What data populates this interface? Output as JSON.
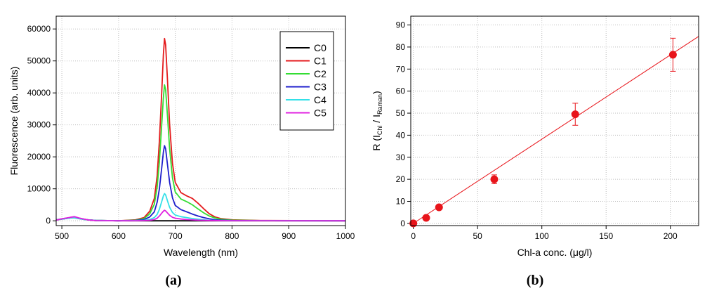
{
  "chart_data": [
    {
      "type": "line",
      "xlabel": "Wavelength (nm)",
      "ylabel": "Fluorescence (arb. units)",
      "xlim": [
        490,
        1000
      ],
      "ylim": [
        -1500,
        64000
      ],
      "xticks": [
        500,
        600,
        700,
        800,
        900,
        1000
      ],
      "yticks": [
        0,
        10000,
        20000,
        30000,
        40000,
        50000,
        60000
      ],
      "grid": true,
      "legend": "top-right",
      "panel_label_parts": [
        "(",
        "a",
        ")"
      ],
      "series": [
        {
          "name": "C0",
          "color": "#000000",
          "x": [
            490,
            500,
            515,
            522,
            530,
            545,
            560,
            620,
            700,
            800,
            1000
          ],
          "y": [
            200,
            600,
            1000,
            1100,
            800,
            300,
            50,
            0,
            0,
            0,
            0
          ]
        },
        {
          "name": "C1",
          "color": "#e41a1c",
          "x": [
            490,
            520,
            540,
            560,
            600,
            630,
            645,
            655,
            663,
            668,
            672,
            676,
            679,
            681,
            683,
            686,
            690,
            695,
            700,
            710,
            720,
            730,
            740,
            750,
            760,
            770,
            780,
            800,
            850,
            1000
          ],
          "y": [
            300,
            1000,
            400,
            100,
            0,
            300,
            1000,
            3000,
            7000,
            14000,
            25000,
            40000,
            52000,
            57000,
            55000,
            45000,
            30000,
            18000,
            12000,
            8800,
            7800,
            7000,
            5500,
            3800,
            2200,
            1200,
            700,
            300,
            80,
            0
          ]
        },
        {
          "name": "C2",
          "color": "#33dd33",
          "x": [
            490,
            520,
            540,
            560,
            600,
            630,
            645,
            655,
            663,
            668,
            672,
            676,
            679,
            681,
            683,
            686,
            690,
            695,
            700,
            710,
            720,
            730,
            740,
            750,
            760,
            770,
            780,
            800,
            850,
            1000
          ],
          "y": [
            300,
            1000,
            400,
            100,
            0,
            200,
            700,
            2200,
            5200,
            10500,
            18500,
            30000,
            38500,
            42500,
            41000,
            33500,
            22500,
            13500,
            9000,
            6800,
            6000,
            5000,
            3700,
            2500,
            1500,
            900,
            500,
            200,
            60,
            0
          ]
        },
        {
          "name": "C3",
          "color": "#1f1fcc",
          "x": [
            490,
            520,
            540,
            560,
            600,
            630,
            645,
            655,
            663,
            668,
            672,
            676,
            679,
            681,
            683,
            686,
            690,
            695,
            700,
            710,
            720,
            730,
            740,
            750,
            760,
            770,
            780,
            800,
            850,
            1000
          ],
          "y": [
            300,
            1000,
            400,
            100,
            0,
            100,
            400,
            1200,
            2800,
            5800,
            10000,
            16500,
            21500,
            23500,
            22500,
            18000,
            12000,
            7200,
            4800,
            3500,
            2800,
            2100,
            1500,
            1000,
            600,
            350,
            200,
            80,
            20,
            0
          ]
        },
        {
          "name": "C4",
          "color": "#33e0e8",
          "x": [
            490,
            520,
            540,
            560,
            600,
            630,
            645,
            655,
            663,
            668,
            672,
            676,
            679,
            681,
            683,
            686,
            690,
            695,
            700,
            710,
            720,
            730,
            740,
            750,
            760,
            780,
            800,
            1000
          ],
          "y": [
            300,
            1000,
            400,
            100,
            0,
            50,
            150,
            400,
            1000,
            2000,
            3600,
            6000,
            7800,
            8500,
            8100,
            6400,
            4200,
            2600,
            1800,
            1300,
            1000,
            700,
            500,
            300,
            150,
            50,
            20,
            0
          ]
        },
        {
          "name": "C5",
          "color": "#e020e0",
          "x": [
            490,
            500,
            515,
            522,
            530,
            545,
            560,
            600,
            630,
            645,
            655,
            663,
            668,
            672,
            676,
            679,
            681,
            683,
            686,
            690,
            695,
            700,
            710,
            720,
            740,
            760,
            800,
            1000
          ],
          "y": [
            200,
            600,
            1100,
            1300,
            900,
            300,
            50,
            0,
            20,
            50,
            150,
            400,
            800,
            1500,
            2400,
            3000,
            3300,
            3100,
            2500,
            1700,
            1100,
            800,
            550,
            400,
            200,
            80,
            10,
            0
          ]
        }
      ]
    },
    {
      "type": "scatter",
      "xlabel": "Chl-a conc. (μg/l)",
      "ylabel_parts": [
        "R (I",
        "Chl",
        " / I",
        "Raman",
        ")"
      ],
      "xlim": [
        -2,
        222
      ],
      "ylim": [
        -1,
        94
      ],
      "xticks": [
        0,
        50,
        100,
        150,
        200
      ],
      "yticks": [
        0,
        10,
        20,
        30,
        40,
        50,
        60,
        70,
        80,
        90
      ],
      "grid": true,
      "color": "#e8141a",
      "points": [
        {
          "x": 0,
          "y": 0,
          "err": 0.8
        },
        {
          "x": 10,
          "y": 2.5,
          "err": 0.8
        },
        {
          "x": 20,
          "y": 7.3,
          "err": 0.8
        },
        {
          "x": 63,
          "y": 20,
          "err": 2
        },
        {
          "x": 126,
          "y": 49.5,
          "err": 5
        },
        {
          "x": 202,
          "y": 76.5,
          "err": 7.5
        }
      ],
      "fit": {
        "slope": 0.382,
        "intercept": 0,
        "x_range": [
          0,
          222
        ]
      },
      "panel_label_parts": [
        "(",
        "b",
        ")"
      ]
    }
  ]
}
